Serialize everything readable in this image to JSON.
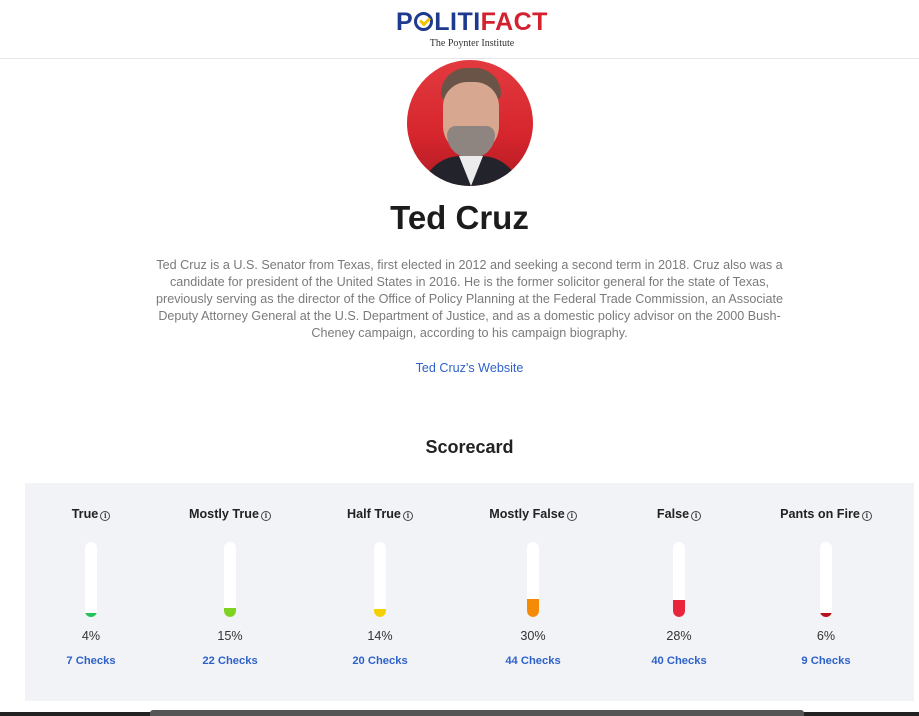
{
  "header": {
    "logo_part1": "P",
    "logo_part2": "LITI",
    "logo_part3": "FACT",
    "logo_sub": "The Poynter Institute"
  },
  "profile": {
    "name": "Ted Cruz",
    "bio": "Ted Cruz is a U.S. Senator from Texas, first elected in 2012 and seeking a second term in 2018. Cruz also was a candidate for president of the United States in 2016. He is the former solicitor general for the state of Texas, previously serving as the director of the Office of Policy Planning at the Federal Trade Commission, an Associate Deputy Attorney General at the U.S. Department of Justice, and as a domestic policy advisor on the 2000 Bush-Cheney campaign, according to his campaign biography.",
    "website_label": "Ted Cruz's Website"
  },
  "scorecard": {
    "title": "Scorecard",
    "ratings": [
      {
        "label": "True",
        "percent": 4,
        "percent_label": "4%",
        "checks_label": "7 Checks",
        "color": "#21c45a"
      },
      {
        "label": "Mostly True",
        "percent": 15,
        "percent_label": "15%",
        "checks_label": "22 Checks",
        "color": "#7ed321"
      },
      {
        "label": "Half True",
        "percent": 14,
        "percent_label": "14%",
        "checks_label": "20 Checks",
        "color": "#f5d000"
      },
      {
        "label": "Mostly False",
        "percent": 30,
        "percent_label": "30%",
        "checks_label": "44 Checks",
        "color": "#f58a07"
      },
      {
        "label": "False",
        "percent": 28,
        "percent_label": "28%",
        "checks_label": "40 Checks",
        "color": "#e8253b"
      },
      {
        "label": "Pants on Fire",
        "percent": 6,
        "percent_label": "6%",
        "checks_label": "9 Checks",
        "color": "#b5121b"
      }
    ]
  },
  "icons": {
    "info": "info-icon"
  }
}
